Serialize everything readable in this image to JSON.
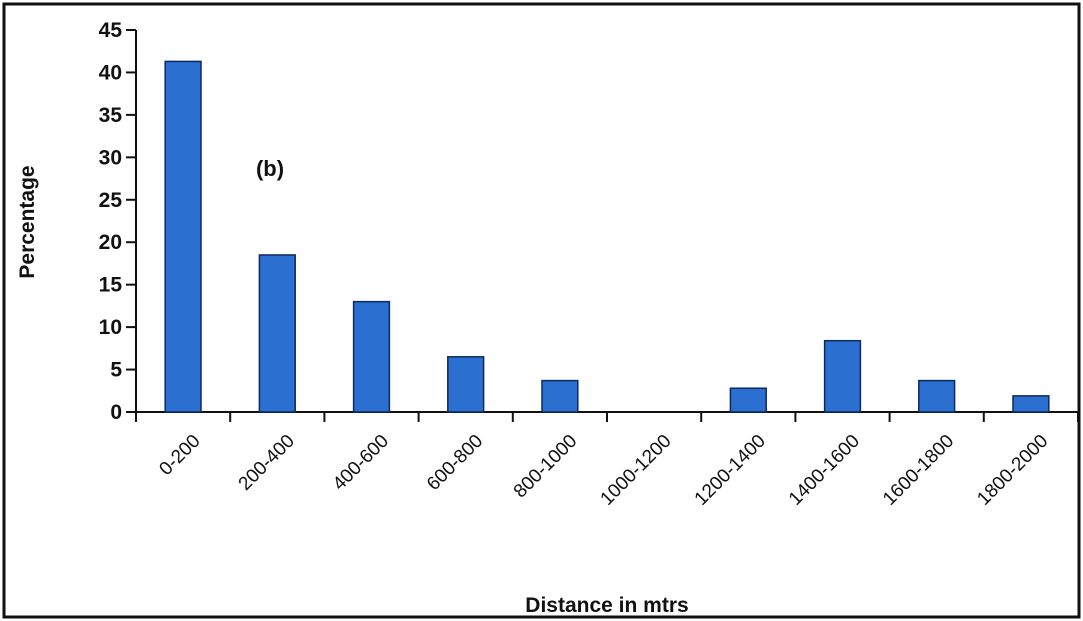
{
  "chart_data": {
    "type": "bar",
    "categories": [
      "0-200",
      "200-400",
      "400-600",
      "600-800",
      "800-1000",
      "1000-1200",
      "1200-1400",
      "1400-1600",
      "1600-1800",
      "1800-2000"
    ],
    "values": [
      41.3,
      18.5,
      13.0,
      6.5,
      3.7,
      0,
      2.8,
      8.4,
      3.7,
      1.9
    ],
    "yticks": [
      0,
      5,
      10,
      15,
      20,
      25,
      30,
      35,
      40,
      45
    ],
    "ylim": [
      0,
      45
    ],
    "xlabel": "Distance in mtrs",
    "ylabel": "Percentage",
    "annotation": "(b)",
    "bar_color": "#2b6fd1",
    "bar_edge_color": "#0d2a5c",
    "grid": false,
    "legend": false
  }
}
